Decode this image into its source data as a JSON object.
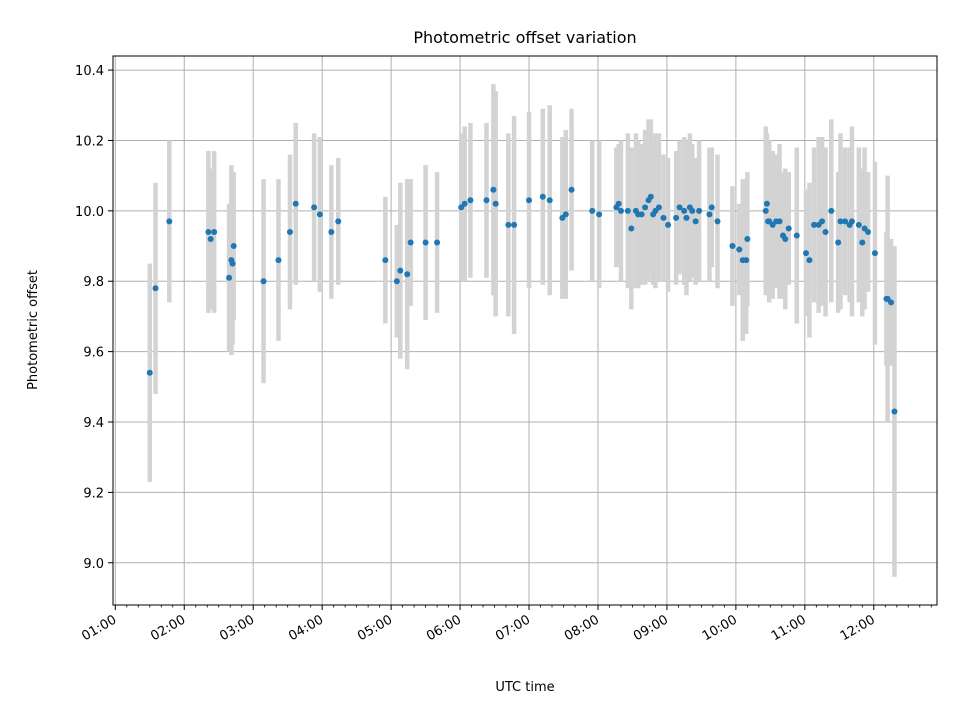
{
  "chart_data": {
    "type": "scatter",
    "title": "Photometric offset variation",
    "xlabel": "UTC time",
    "ylabel": "Photometric offset",
    "x_unit": "UTC time HH:MM",
    "xlim": [
      "00:58",
      "12:55"
    ],
    "ylim": [
      8.88,
      10.44
    ],
    "grid": true,
    "x_ticks": [
      "01:00",
      "02:00",
      "03:00",
      "04:00",
      "05:00",
      "06:00",
      "07:00",
      "08:00",
      "09:00",
      "10:00",
      "11:00",
      "12:00"
    ],
    "y_ticks": [
      "9.0",
      "9.2",
      "9.4",
      "9.6",
      "9.8",
      "10.0",
      "10.2",
      "10.4"
    ],
    "marker_color": "#1f77b4",
    "errorbar_color": "#d3d3d3",
    "points": [
      {
        "t": "01:30",
        "y": 9.54,
        "err": 0.31
      },
      {
        "t": "01:35",
        "y": 9.78,
        "err": 0.3
      },
      {
        "t": "01:47",
        "y": 9.97,
        "err": 0.23
      },
      {
        "t": "02:21",
        "y": 9.94,
        "err": 0.23
      },
      {
        "t": "02:23",
        "y": 9.92,
        "err": 0.2
      },
      {
        "t": "02:26",
        "y": 9.94,
        "err": 0.23
      },
      {
        "t": "02:39",
        "y": 9.81,
        "err": 0.21
      },
      {
        "t": "02:41",
        "y": 9.86,
        "err": 0.27
      },
      {
        "t": "02:42",
        "y": 9.85,
        "err": 0.23
      },
      {
        "t": "02:43",
        "y": 9.9,
        "err": 0.21
      },
      {
        "t": "03:09",
        "y": 9.8,
        "err": 0.29
      },
      {
        "t": "03:22",
        "y": 9.86,
        "err": 0.23
      },
      {
        "t": "03:32",
        "y": 9.94,
        "err": 0.22
      },
      {
        "t": "03:37",
        "y": 10.02,
        "err": 0.23
      },
      {
        "t": "03:53",
        "y": 10.01,
        "err": 0.21
      },
      {
        "t": "03:58",
        "y": 9.99,
        "err": 0.22
      },
      {
        "t": "04:08",
        "y": 9.94,
        "err": 0.19
      },
      {
        "t": "04:14",
        "y": 9.97,
        "err": 0.18
      },
      {
        "t": "04:55",
        "y": 9.86,
        "err": 0.18
      },
      {
        "t": "05:05",
        "y": 9.8,
        "err": 0.16
      },
      {
        "t": "05:08",
        "y": 9.83,
        "err": 0.25
      },
      {
        "t": "05:14",
        "y": 9.82,
        "err": 0.27
      },
      {
        "t": "05:17",
        "y": 9.91,
        "err": 0.18
      },
      {
        "t": "05:30",
        "y": 9.91,
        "err": 0.22
      },
      {
        "t": "05:40",
        "y": 9.91,
        "err": 0.2
      },
      {
        "t": "06:01",
        "y": 10.01,
        "err": 0.21
      },
      {
        "t": "06:04",
        "y": 10.02,
        "err": 0.22
      },
      {
        "t": "06:09",
        "y": 10.03,
        "err": 0.22
      },
      {
        "t": "06:23",
        "y": 10.03,
        "err": 0.22
      },
      {
        "t": "06:29",
        "y": 10.06,
        "err": 0.3
      },
      {
        "t": "06:31",
        "y": 10.02,
        "err": 0.32
      },
      {
        "t": "06:42",
        "y": 9.96,
        "err": 0.26
      },
      {
        "t": "06:47",
        "y": 9.96,
        "err": 0.31
      },
      {
        "t": "07:00",
        "y": 10.03,
        "err": 0.25
      },
      {
        "t": "07:12",
        "y": 10.04,
        "err": 0.25
      },
      {
        "t": "07:18",
        "y": 10.03,
        "err": 0.27
      },
      {
        "t": "07:29",
        "y": 9.98,
        "err": 0.23
      },
      {
        "t": "07:32",
        "y": 9.99,
        "err": 0.24
      },
      {
        "t": "07:37",
        "y": 10.06,
        "err": 0.23
      },
      {
        "t": "07:55",
        "y": 10.0,
        "err": 0.2
      },
      {
        "t": "08:01",
        "y": 9.99,
        "err": 0.21
      },
      {
        "t": "08:16",
        "y": 10.01,
        "err": 0.17
      },
      {
        "t": "08:18",
        "y": 10.02,
        "err": 0.17
      },
      {
        "t": "08:20",
        "y": 10.0,
        "err": 0.2
      },
      {
        "t": "08:26",
        "y": 10.0,
        "err": 0.22
      },
      {
        "t": "08:29",
        "y": 9.95,
        "err": 0.23
      },
      {
        "t": "08:33",
        "y": 10.0,
        "err": 0.22
      },
      {
        "t": "08:35",
        "y": 9.99,
        "err": 0.21
      },
      {
        "t": "08:38",
        "y": 9.99,
        "err": 0.2
      },
      {
        "t": "08:41",
        "y": 10.01,
        "err": 0.22
      },
      {
        "t": "08:44",
        "y": 10.03,
        "err": 0.23
      },
      {
        "t": "08:46",
        "y": 10.04,
        "err": 0.22
      },
      {
        "t": "08:48",
        "y": 9.99,
        "err": 0.2
      },
      {
        "t": "08:50",
        "y": 10.0,
        "err": 0.22
      },
      {
        "t": "08:53",
        "y": 10.01,
        "err": 0.21
      },
      {
        "t": "08:57",
        "y": 9.98,
        "err": 0.18
      },
      {
        "t": "09:01",
        "y": 9.96,
        "err": 0.19
      },
      {
        "t": "09:08",
        "y": 9.98,
        "err": 0.19
      },
      {
        "t": "09:11",
        "y": 10.01,
        "err": 0.19
      },
      {
        "t": "09:15",
        "y": 10.0,
        "err": 0.21
      },
      {
        "t": "09:17",
        "y": 9.98,
        "err": 0.22
      },
      {
        "t": "09:20",
        "y": 10.01,
        "err": 0.21
      },
      {
        "t": "09:22",
        "y": 10.0,
        "err": 0.19
      },
      {
        "t": "09:25",
        "y": 9.97,
        "err": 0.18
      },
      {
        "t": "09:28",
        "y": 10.0,
        "err": 0.2
      },
      {
        "t": "09:37",
        "y": 9.99,
        "err": 0.19
      },
      {
        "t": "09:39",
        "y": 10.01,
        "err": 0.17
      },
      {
        "t": "09:44",
        "y": 9.97,
        "err": 0.19
      },
      {
        "t": "09:57",
        "y": 9.9,
        "err": 0.17
      },
      {
        "t": "10:03",
        "y": 9.89,
        "err": 0.13
      },
      {
        "t": "10:06",
        "y": 9.86,
        "err": 0.23
      },
      {
        "t": "10:09",
        "y": 9.86,
        "err": 0.21
      },
      {
        "t": "10:10",
        "y": 9.92,
        "err": 0.19
      },
      {
        "t": "10:26",
        "y": 10.0,
        "err": 0.24
      },
      {
        "t": "10:27",
        "y": 10.02,
        "err": 0.2
      },
      {
        "t": "10:28",
        "y": 9.97,
        "err": 0.21
      },
      {
        "t": "10:29",
        "y": 9.97,
        "err": 0.23
      },
      {
        "t": "10:32",
        "y": 9.96,
        "err": 0.21
      },
      {
        "t": "10:35",
        "y": 9.97,
        "err": 0.19
      },
      {
        "t": "10:38",
        "y": 9.97,
        "err": 0.22
      },
      {
        "t": "10:41",
        "y": 9.93,
        "err": 0.18
      },
      {
        "t": "10:43",
        "y": 9.92,
        "err": 0.2
      },
      {
        "t": "10:46",
        "y": 9.95,
        "err": 0.16
      },
      {
        "t": "10:53",
        "y": 9.93,
        "err": 0.25
      },
      {
        "t": "11:01",
        "y": 9.88,
        "err": 0.18
      },
      {
        "t": "11:04",
        "y": 9.86,
        "err": 0.22
      },
      {
        "t": "11:08",
        "y": 9.96,
        "err": 0.22
      },
      {
        "t": "11:12",
        "y": 9.96,
        "err": 0.25
      },
      {
        "t": "11:15",
        "y": 9.97,
        "err": 0.24
      },
      {
        "t": "11:18",
        "y": 9.94,
        "err": 0.24
      },
      {
        "t": "11:23",
        "y": 10.0,
        "err": 0.26
      },
      {
        "t": "11:29",
        "y": 9.91,
        "err": 0.2
      },
      {
        "t": "11:31",
        "y": 9.97,
        "err": 0.25
      },
      {
        "t": "11:35",
        "y": 9.97,
        "err": 0.21
      },
      {
        "t": "11:39",
        "y": 9.96,
        "err": 0.22
      },
      {
        "t": "11:41",
        "y": 9.97,
        "err": 0.27
      },
      {
        "t": "11:47",
        "y": 9.96,
        "err": 0.22
      },
      {
        "t": "11:50",
        "y": 9.91,
        "err": 0.21
      },
      {
        "t": "11:52",
        "y": 9.95,
        "err": 0.23
      },
      {
        "t": "11:55",
        "y": 9.94,
        "err": 0.17
      },
      {
        "t": "12:01",
        "y": 9.88,
        "err": 0.26
      },
      {
        "t": "12:11",
        "y": 9.75,
        "err": 0.19
      },
      {
        "t": "12:12",
        "y": 9.75,
        "err": 0.35
      },
      {
        "t": "12:15",
        "y": 9.74,
        "err": 0.18
      },
      {
        "t": "12:18",
        "y": 9.43,
        "err": 0.47
      }
    ]
  }
}
